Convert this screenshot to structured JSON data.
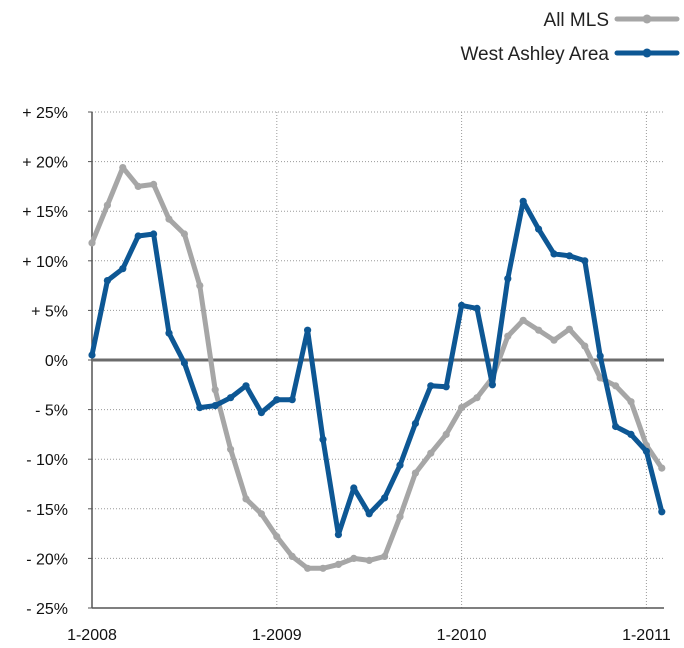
{
  "chart_data": {
    "type": "line",
    "title": "",
    "xlabel": "",
    "ylabel": "",
    "ylim": [
      -25,
      25
    ],
    "yticks": [
      25,
      20,
      15,
      10,
      5,
      0,
      -5,
      -10,
      -15,
      -20,
      -25
    ],
    "ytick_labels": [
      "+ 25%",
      "+ 20%",
      "+ 15%",
      "+ 10%",
      "+ 5%",
      "0%",
      "- 5%",
      "- 10%",
      "- 15%",
      "- 20%",
      "- 25%"
    ],
    "xticks": [
      {
        "month_index": 0,
        "label": "1-2008"
      },
      {
        "month_index": 12,
        "label": "1-2009"
      },
      {
        "month_index": 24,
        "label": "1-2010"
      },
      {
        "month_index": 36,
        "label": "1-2011"
      }
    ],
    "x_start": "1-2008",
    "grid": "dotted-vertical-and-horizontal",
    "legend_position": "top-right",
    "series": [
      {
        "name": "All MLS",
        "color": "#a6a6a6",
        "values": [
          11.8,
          15.6,
          19.4,
          17.5,
          17.7,
          14.2,
          12.7,
          7.5,
          -3.0,
          -9.0,
          -14.0,
          -15.5,
          -17.8,
          -19.8,
          -21.0,
          -21.0,
          -20.6,
          -20.0,
          -20.2,
          -19.8,
          -15.8,
          -11.4,
          -9.4,
          -7.5,
          -4.8,
          -3.8,
          -1.8,
          2.4,
          4.0,
          3.0,
          2.0,
          3.1,
          1.4,
          -1.8,
          -2.6,
          -4.2,
          -8.6,
          -10.9
        ]
      },
      {
        "name": "West Ashley Area",
        "color": "#0d5794",
        "values": [
          0.5,
          8.0,
          9.2,
          12.5,
          12.7,
          2.7,
          -0.3,
          -4.8,
          -4.6,
          -3.8,
          -2.6,
          -5.3,
          -4.0,
          -4.0,
          3.0,
          -8.0,
          -17.6,
          -12.9,
          -15.5,
          -13.9,
          -10.6,
          -6.4,
          -2.6,
          -2.7,
          5.5,
          5.2,
          -2.5,
          8.2,
          16.0,
          13.2,
          10.7,
          10.5,
          10.0,
          0.4,
          -6.7,
          -7.5,
          -9.2,
          -15.3
        ]
      }
    ]
  }
}
